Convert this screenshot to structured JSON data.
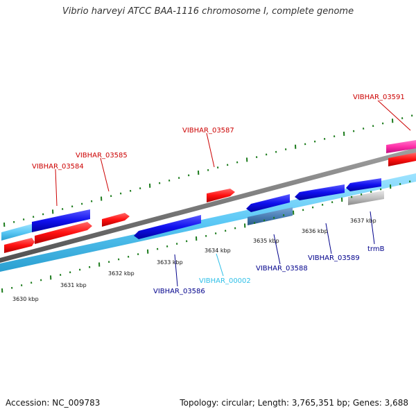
{
  "title": "Vibrio harveyi ATCC BAA-1116 chromosome I, complete genome",
  "footer": {
    "accession": "Accession: NC_009783",
    "summary": "Topology: circular; Length: 3,765,351 bp; Genes: 3,688"
  },
  "colors": {
    "backbone": "#808080",
    "forward_cds": "#0000ff",
    "reverse_cds": "#ff0000",
    "gene_bar": "#5bc8f5",
    "rna": "#4a7fb5",
    "pseudo": "#c0c0c0",
    "pink": "#ff33aa",
    "tick": "#1a7a1a",
    "label_red": "#cc0000",
    "label_blue": "#00008b",
    "label_cyan": "#30c0e8"
  },
  "ticks": [
    "3630 kbp",
    "3631 kbp",
    "3632 kbp",
    "3633 kbp",
    "3634 kbp",
    "3635 kbp",
    "3636 kbp",
    "3637 kbp"
  ],
  "features": [
    {
      "label": "VIBHAR_03584",
      "color": "label_red"
    },
    {
      "label": "VIBHAR_03585",
      "color": "label_red"
    },
    {
      "label": "VIBHAR_03587",
      "color": "label_red"
    },
    {
      "label": "VIBHAR_03591",
      "color": "label_red"
    },
    {
      "label": "VIBHAR_03586",
      "color": "label_blue"
    },
    {
      "label": "VIBHAR_00002",
      "color": "label_cyan"
    },
    {
      "label": "VIBHAR_03588",
      "color": "label_blue"
    },
    {
      "label": "VIBHAR_03589",
      "color": "label_blue"
    },
    {
      "label": "trmB",
      "color": "label_blue"
    }
  ]
}
